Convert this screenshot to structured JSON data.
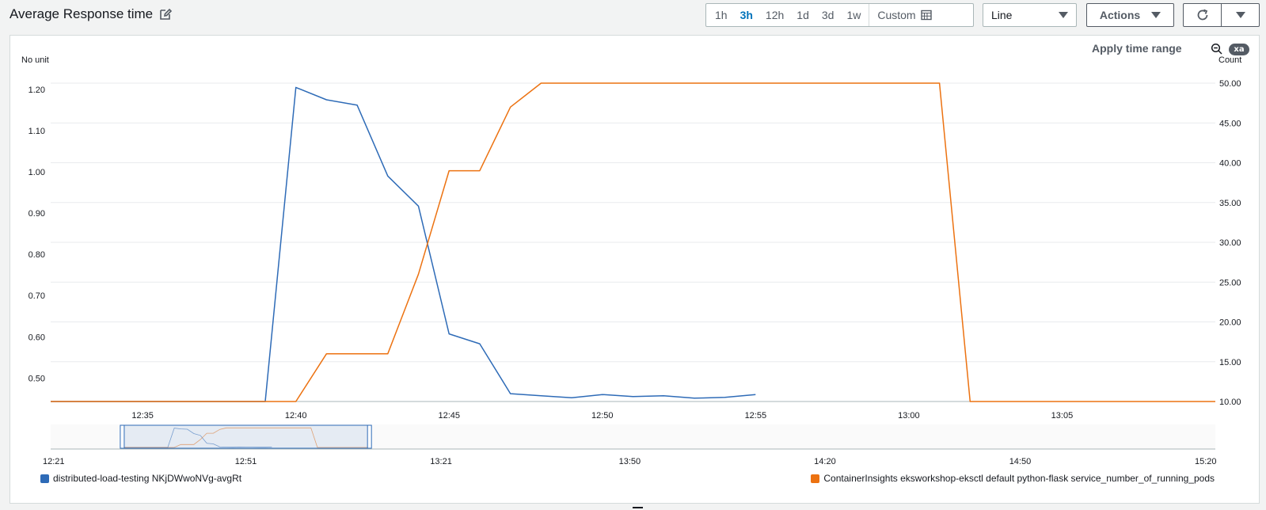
{
  "widget": {
    "title": "Average Response time",
    "edit_icon": "edit-icon"
  },
  "toolbar": {
    "ranges": [
      {
        "label": "1h",
        "active": false
      },
      {
        "label": "3h",
        "active": true
      },
      {
        "label": "12h",
        "active": false
      },
      {
        "label": "1d",
        "active": false
      },
      {
        "label": "3d",
        "active": false
      },
      {
        "label": "1w",
        "active": false
      }
    ],
    "custom_label": "Custom",
    "custom_icon": "calendar-icon",
    "chart_type_value": "Line",
    "actions_label": "Actions",
    "refresh_icon": "refresh-icon",
    "dropdown_icon": "caret-down-icon"
  },
  "panel": {
    "apply_time_range": "Apply time range",
    "zoom_icon": "zoom-out-icon",
    "badge": "xa",
    "left_unit": "No unit",
    "right_unit": "Count"
  },
  "colors": {
    "blue": "#2e6bb7",
    "orange": "#ec7211",
    "grid": "#e9ebed"
  },
  "chart_data": {
    "type": "line",
    "left_axis": {
      "label": "No unit",
      "ylim": [
        0.443,
        1.225
      ],
      "ticks": [
        "0.50",
        "0.60",
        "0.70",
        "0.80",
        "0.90",
        "1.00",
        "1.10",
        "1.20"
      ]
    },
    "right_axis": {
      "label": "Count",
      "ylim": [
        10,
        50.5
      ],
      "ticks": [
        "10.00",
        "15.00",
        "20.00",
        "25.00",
        "30.00",
        "35.00",
        "40.00",
        "45.00",
        "50.00"
      ]
    },
    "x_axis": {
      "range": [
        "12:32",
        "13:10"
      ],
      "ticks": [
        "12:35",
        "12:40",
        "12:45",
        "12:50",
        "12:55",
        "13:00",
        "13:05"
      ]
    },
    "series": [
      {
        "name": "distributed-load-testing NKjDWwoNVg-avgRt",
        "axis": "left",
        "color": "#2e6bb7",
        "points": [
          [
            "12:32",
            0.443
          ],
          [
            "12:39",
            0.443
          ],
          [
            "12:40",
            1.205
          ],
          [
            "12:41",
            1.175
          ],
          [
            "12:42",
            1.162
          ],
          [
            "12:43",
            0.99
          ],
          [
            "12:44",
            0.917
          ],
          [
            "12:45",
            0.607
          ],
          [
            "12:46",
            0.583
          ],
          [
            "12:47",
            0.462
          ],
          [
            "12:48",
            0.457
          ],
          [
            "12:49",
            0.452
          ],
          [
            "12:50",
            0.46
          ],
          [
            "12:51",
            0.455
          ],
          [
            "12:52",
            0.457
          ],
          [
            "12:53",
            0.451
          ],
          [
            "12:54",
            0.453
          ],
          [
            "12:55",
            0.46
          ]
        ]
      },
      {
        "name": "ContainerInsights eksworkshop-eksctl default python-flask service_number_of_running_pods",
        "axis": "right",
        "color": "#ec7211",
        "points": [
          [
            "12:32",
            10
          ],
          [
            "12:40",
            10
          ],
          [
            "12:41",
            16
          ],
          [
            "12:42",
            16
          ],
          [
            "12:43",
            16
          ],
          [
            "12:44",
            26
          ],
          [
            "12:45",
            39
          ],
          [
            "12:46",
            39
          ],
          [
            "12:47",
            47
          ],
          [
            "12:48",
            50
          ],
          [
            "13:01",
            50
          ],
          [
            "13:02",
            10
          ],
          [
            "13:10",
            10
          ]
        ]
      }
    ],
    "navigator": {
      "ticks": [
        "12:21",
        "12:51",
        "13:21",
        "13:50",
        "14:20",
        "14:50",
        "15:20"
      ],
      "range": [
        "12:21",
        "15:20"
      ],
      "selection": [
        "12:32",
        "13:10"
      ]
    },
    "grid": true,
    "legend_position": "bottom"
  }
}
